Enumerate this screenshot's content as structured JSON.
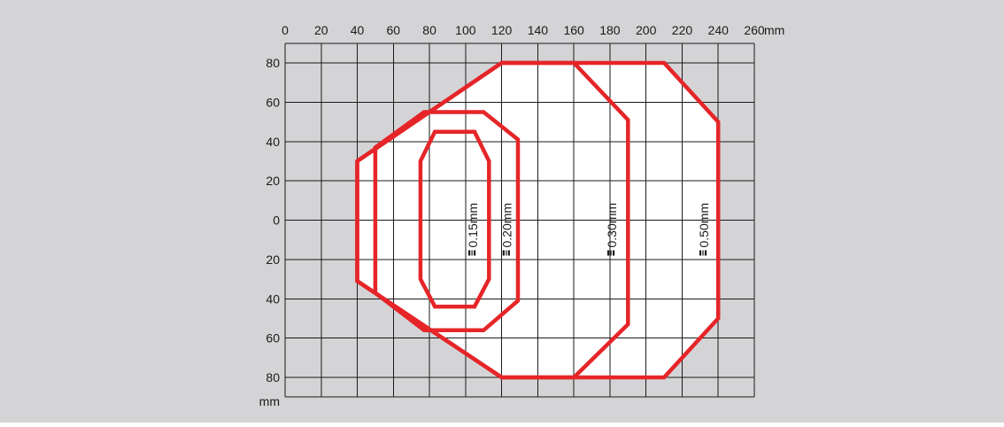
{
  "colors": {
    "background": "#d4d4d6",
    "plot_fill": "#ffffff",
    "grid": "#1a1a1a",
    "zone_stroke": "#e52528",
    "text": "#1a1a1a"
  },
  "chart_data": {
    "type": "diagram",
    "x_axis": {
      "unit": "mm",
      "ticks": [
        "0",
        "20",
        "40",
        "60",
        "80",
        "100",
        "120",
        "140",
        "160",
        "180",
        "200",
        "220",
        "240",
        "260"
      ],
      "range": [
        0,
        260
      ]
    },
    "y_axis": {
      "unit": "mm",
      "ticks": [
        "80",
        "60",
        "40",
        "20",
        "0",
        "20",
        "40",
        "60",
        "80"
      ],
      "range": [
        -90,
        90
      ]
    },
    "zones": [
      {
        "label": "0.15mm",
        "polygon": [
          [
            75,
            30
          ],
          [
            83,
            45
          ],
          [
            105,
            45
          ],
          [
            113,
            30
          ],
          [
            113,
            -30
          ],
          [
            105,
            -44
          ],
          [
            83,
            -44
          ],
          [
            75,
            -30
          ]
        ]
      },
      {
        "label": "0.20mm",
        "polygon": [
          [
            50,
            37
          ],
          [
            77,
            55
          ],
          [
            110,
            55
          ],
          [
            129,
            41
          ],
          [
            129,
            -41
          ],
          [
            110,
            -56
          ],
          [
            77,
            -56
          ],
          [
            50,
            -37
          ]
        ]
      },
      {
        "label": "0.30mm",
        "polygon": [
          [
            40,
            30
          ],
          [
            120,
            80
          ],
          [
            160,
            80
          ],
          [
            190,
            51
          ],
          [
            190,
            -53
          ],
          [
            160,
            -80
          ],
          [
            120,
            -80
          ],
          [
            40,
            -31
          ]
        ]
      },
      {
        "label": "0.50mm",
        "polygon": [
          [
            40,
            30
          ],
          [
            120,
            80
          ],
          [
            210,
            80
          ],
          [
            240,
            50
          ],
          [
            240,
            -50
          ],
          [
            210,
            -80
          ],
          [
            120,
            -80
          ],
          [
            40,
            -31
          ]
        ]
      }
    ],
    "label_positions": [
      [
        104,
        0
      ],
      [
        123,
        0
      ],
      [
        181,
        0
      ],
      [
        232,
        0
      ]
    ]
  }
}
